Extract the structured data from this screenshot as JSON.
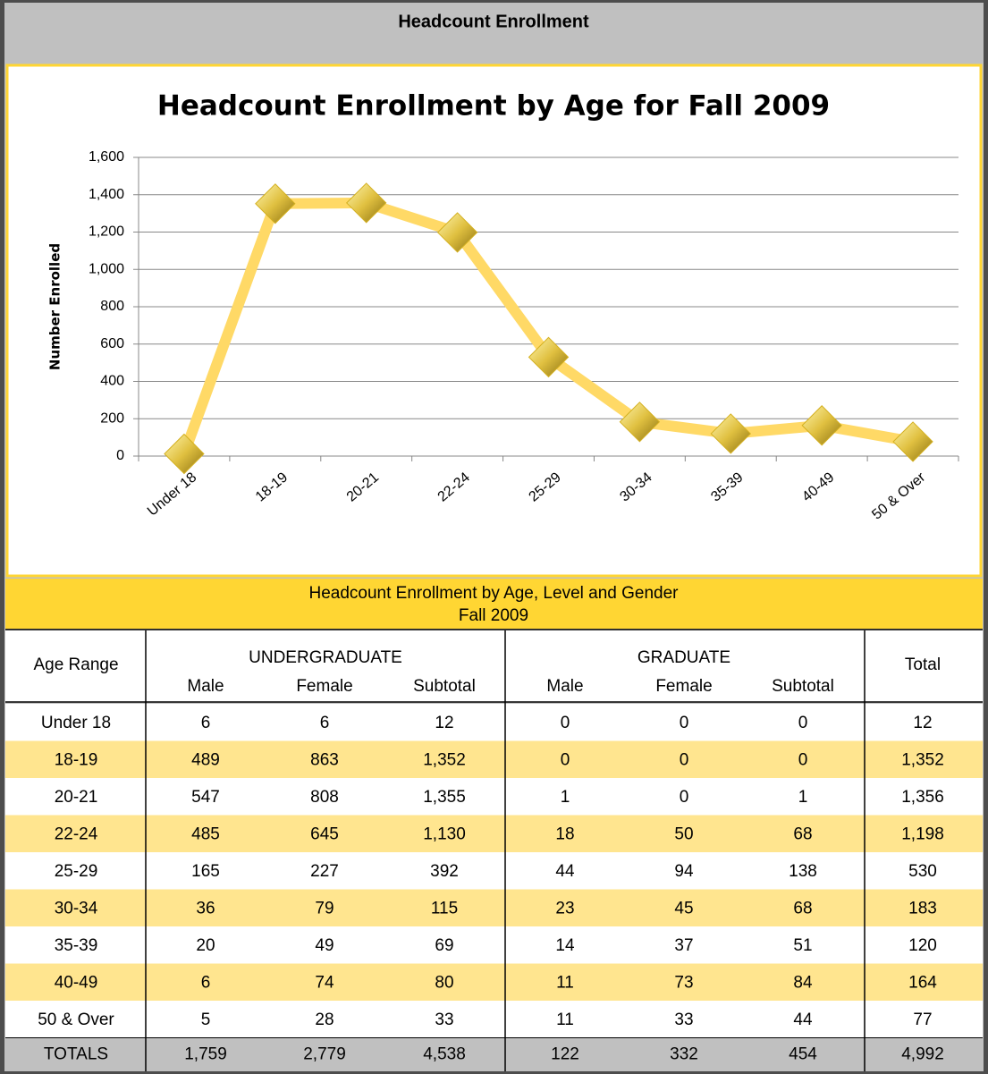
{
  "header": {
    "title": "Headcount Enrollment"
  },
  "chart_data": {
    "type": "line",
    "title": "Headcount Enrollment by Age for Fall 2009",
    "y_label": "Number Enrolled",
    "categories": [
      "Under 18",
      "18-19",
      "20-21",
      "22-24",
      "25-29",
      "30-34",
      "35-39",
      "40-49",
      "50 & Over"
    ],
    "values": [
      12,
      1352,
      1356,
      1198,
      530,
      183,
      120,
      164,
      77
    ],
    "color": "#ffd966",
    "marker_color": "#d4b020",
    "ylim": [
      0,
      1600
    ],
    "yticks": [
      0,
      200,
      400,
      600,
      800,
      {
        "value": 1000,
        "label": "1,000"
      },
      {
        "value": 1200,
        "label": "1,200"
      },
      {
        "value": 1400,
        "label": "1,400"
      },
      {
        "value": 1600,
        "label": "1,600"
      }
    ],
    "grid": true
  },
  "table": {
    "title": [
      "Headcount Enrollment by Age, Level and Gender",
      "Fall 2009"
    ],
    "header": {
      "age": "Age Range",
      "undergraduate": "UNDERGRADUATE",
      "graduate": "GRADUATE",
      "total": "Total",
      "sub": [
        "Male",
        "Female",
        "Subtotal",
        "Male",
        "Female",
        "Subtotal"
      ]
    },
    "rows": [
      [
        "Under 18",
        "6",
        "6",
        "12",
        "0",
        "0",
        "0",
        "12"
      ],
      [
        "18-19",
        "489",
        "863",
        "1,352",
        "0",
        "0",
        "0",
        "1,352"
      ],
      [
        "20-21",
        "547",
        "808",
        "1,355",
        "1",
        "0",
        "1",
        "1,356"
      ],
      [
        "22-24",
        "485",
        "645",
        "1,130",
        "18",
        "50",
        "68",
        "1,198"
      ],
      [
        "25-29",
        "165",
        "227",
        "392",
        "44",
        "94",
        "138",
        "530"
      ],
      [
        "30-34",
        "36",
        "79",
        "115",
        "23",
        "45",
        "68",
        "183"
      ],
      [
        "35-39",
        "20",
        "49",
        "69",
        "14",
        "37",
        "51",
        "120"
      ],
      [
        "40-49",
        "6",
        "74",
        "80",
        "11",
        "73",
        "84",
        "164"
      ],
      [
        "50 & Over",
        "5",
        "28",
        "33",
        "11",
        "33",
        "44",
        "77"
      ]
    ],
    "totals": [
      "TOTALS",
      "1,759",
      "2,779",
      "4,538",
      "122",
      "332",
      "454",
      "4,992"
    ]
  }
}
